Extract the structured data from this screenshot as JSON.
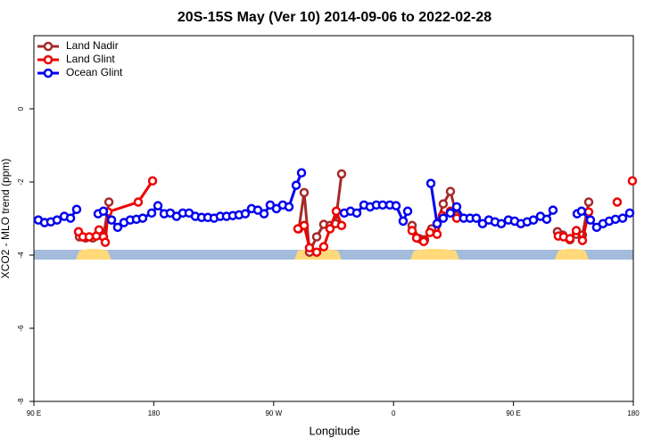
{
  "chart_data": {
    "type": "line",
    "title": "20S-15S May (Ver 10)   2014-09-06 to 2022-02-28",
    "x_label": "Longitude",
    "y_label": "XCO2 - MLO trend (ppm)",
    "xlim": [
      90,
      540
    ],
    "ylim": [
      -8,
      2
    ],
    "xticks": [
      {
        "value": 90,
        "label": "90 E"
      },
      180,
      {
        "value": 270,
        "label": "90 W"
      },
      {
        "value": 360,
        "label": "0"
      },
      {
        "value": 450,
        "label": "90 E"
      },
      {
        "value": 540,
        "label": "180"
      }
    ],
    "yticks": [
      -8,
      -6,
      -4,
      -2,
      0
    ],
    "legend": "top-left",
    "land_ranges": [
      [
        121.5,
        148
      ],
      [
        285.5,
        321
      ],
      [
        372.6,
        409.4
      ],
      [
        481,
        506.5
      ]
    ],
    "series": [
      {
        "name": "Land Nadir",
        "color": "#a52a2a",
        "x": [
          124.2,
          128.8,
          134.2,
          138.2,
          142.2,
          146.3,
          null,
          288.9,
          292.9,
          296.9,
          302.3,
          307.6,
          312.3,
          316.3,
          321.0,
          null,
          373.9,
          379.3,
          383.3,
          388.6,
          392.7,
          397.3,
          402.7,
          407.4,
          null,
          483.0,
          487.0,
          492.4,
          497.2,
          501.8,
          506.5
        ],
        "values": [
          -3.5,
          -3.53,
          -3.53,
          -3.43,
          -3.5,
          -2.55,
          null,
          -3.28,
          -2.29,
          -3.92,
          -3.5,
          -3.16,
          -3.19,
          -3.14,
          -1.78,
          null,
          -3.19,
          -3.55,
          -3.58,
          -3.28,
          -3.14,
          -2.6,
          -2.26,
          -2.92,
          null,
          -3.36,
          -3.45,
          -3.58,
          -3.43,
          -3.45,
          -2.55
        ]
      },
      {
        "name": "Land Glint",
        "color": "#ee0000",
        "x": [
          123.5,
          126.8,
          131.5,
          136.9,
          138.9,
          142.2,
          143.6,
          145.6,
          168.3,
          179.1,
          null,
          288.2,
          292.9,
          296.9,
          302.3,
          307.6,
          312.3,
          317.0,
          321.0,
          null,
          373.9,
          377.3,
          382.6,
          387.3,
          392.7,
          396.7,
          402.7,
          407.4,
          null,
          483.7,
          487.7,
          492.4,
          497.2,
          501.8,
          506.5,
          null,
          527.9,
          null,
          539.3
        ],
        "values": [
          -3.36,
          -3.5,
          -3.5,
          -3.48,
          -3.31,
          -3.5,
          -3.65,
          -2.82,
          -2.55,
          -1.97,
          null,
          -3.28,
          -3.19,
          -3.8,
          -3.92,
          -3.77,
          -3.28,
          -2.8,
          -3.19,
          null,
          -3.33,
          -3.53,
          -3.63,
          -3.38,
          -3.43,
          -2.92,
          -2.8,
          -2.99,
          null,
          -3.48,
          -3.5,
          -3.55,
          -3.33,
          -3.6,
          -2.82,
          null,
          -2.55,
          null,
          -1.97
        ]
      },
      {
        "name": "Ocean Glint",
        "color": "#0000ee",
        "x": [
          93.3,
          98.0,
          102.7,
          107.4,
          112.8,
          117.5,
          122.1,
          null,
          138.2,
          142.2,
          148.3,
          152.9,
          157.6,
          162.3,
          167.0,
          171.7,
          178.4,
          183.1,
          187.8,
          192.4,
          197.1,
          201.8,
          206.5,
          211.2,
          215.9,
          220.6,
          225.3,
          229.9,
          234.6,
          239.3,
          244.0,
          248.7,
          253.4,
          258.1,
          262.8,
          267.4,
          272.1,
          276.8,
          281.5,
          286.9,
          290.9,
          null,
          323.0,
          327.7,
          332.4,
          337.8,
          342.4,
          347.1,
          351.8,
          357.2,
          361.9,
          367.2,
          370.6,
          null,
          388.0,
          392.7,
          397.3,
          402.7,
          407.4,
          412.7,
          417.4,
          422.1,
          426.8,
          431.5,
          436.2,
          440.9,
          446.2,
          450.9,
          455.6,
          460.3,
          465.0,
          470.3,
          475.0,
          479.7,
          null,
          497.8,
          501.1,
          507.8,
          512.5,
          517.2,
          521.9,
          526.6,
          532.0,
          537.3
        ],
        "values": [
          -3.04,
          -3.11,
          -3.09,
          -3.04,
          -2.94,
          -2.99,
          -2.75,
          null,
          -2.87,
          -2.8,
          -3.04,
          -3.24,
          -3.11,
          -3.04,
          -3.02,
          -2.99,
          -2.85,
          -2.65,
          -2.87,
          -2.85,
          -2.94,
          -2.85,
          -2.85,
          -2.94,
          -2.97,
          -2.97,
          -2.99,
          -2.94,
          -2.94,
          -2.92,
          -2.9,
          -2.87,
          -2.73,
          -2.77,
          -2.87,
          -2.63,
          -2.73,
          -2.63,
          -2.68,
          -2.09,
          -1.75,
          null,
          -2.85,
          -2.8,
          -2.85,
          -2.63,
          -2.68,
          -2.63,
          -2.63,
          -2.63,
          -2.65,
          -3.07,
          -2.8,
          null,
          -2.04,
          -3.14,
          -2.99,
          -2.85,
          -2.68,
          -2.99,
          -2.99,
          -2.99,
          -3.14,
          -3.04,
          -3.09,
          -3.14,
          -3.04,
          -3.07,
          -3.14,
          -3.09,
          -3.04,
          -2.94,
          -3.02,
          -2.77,
          null,
          -2.87,
          -2.8,
          -3.04,
          -3.24,
          -3.14,
          -3.07,
          -3.02,
          -2.99,
          -2.85
        ]
      }
    ]
  }
}
